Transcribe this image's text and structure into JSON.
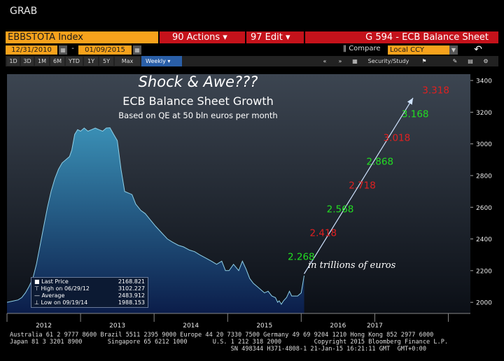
{
  "window_label": "GRAB",
  "header": {
    "ticker": "EBBSTOTA Index",
    "actions_label": "90 Actions ▾",
    "edit_label": "97 Edit   ▾",
    "title": "G 594 - ECB Balance Sheet",
    "start_date": "12/31/2010",
    "end_date": "01/09/2015",
    "date_separator": "-",
    "compare_label": "Compare",
    "currency": "Local CCY"
  },
  "range_buttons": [
    "1D",
    "3D",
    "1M",
    "6M",
    "YTD",
    "1Y",
    "5Y",
    "Max"
  ],
  "frequency": "Weekly ▾",
  "tools": {
    "security_study": "Security/Study"
  },
  "legend": {
    "rows": [
      {
        "label": "Last Price",
        "value": "2168.821"
      },
      {
        "label": "High on 06/29/12",
        "value": "3102.227"
      },
      {
        "label": "Average",
        "value": "2483.912"
      },
      {
        "label": "Low on 09/19/14",
        "value": "1988.153"
      }
    ]
  },
  "footer": {
    "line1": "Australia 61 2 9777 8600 Brazil 5511 2395 9000 Europe 44 20 7330 7500 Germany 49 69 9204 1210 Hong Kong 852 2977 6000",
    "line2": "Japan 81 3 3201 8900       Singapore 65 6212 1000       U.S. 1 212 318 2000         Copyright 2015 Bloomberg Finance L.P.",
    "line3": "                                                             SN 498344 H371-4808-1 21-Jan-15 16:21:11 GMT  GMT+0:00"
  },
  "colors": {
    "orange": "#f7a21c",
    "red_button": "#c4121b",
    "series_fill": "#2f7fa3",
    "projection_up": "#22dd22",
    "projection_down": "#e02020"
  },
  "chart_data": {
    "type": "area",
    "annotation_title": "Shock & Awe???",
    "subtitle": "ECB Balance Sheet Growth",
    "subsubtitle": "Based on QE at 50 bln euros per month",
    "units_note": "in trillions of euros",
    "x_tick_labels": [
      "2012",
      "2013",
      "2014",
      "2015",
      "2016",
      "2017"
    ],
    "y_ticks": [
      2000,
      2200,
      2400,
      2600,
      2800,
      3000,
      3200,
      3400
    ],
    "ylim": [
      1930,
      3440
    ],
    "xlim": [
      2011.0,
      2017.3
    ],
    "series": [
      {
        "x": [
          2011.0,
          2011.05,
          2011.1,
          2011.15,
          2011.2,
          2011.25,
          2011.3,
          2011.35,
          2011.4,
          2011.45,
          2011.5,
          2011.55,
          2011.6,
          2011.65,
          2011.7,
          2011.75,
          2011.8,
          2011.85,
          2011.88,
          2011.92,
          2011.96,
          2012.0,
          2012.05,
          2012.1,
          2012.15,
          2012.2,
          2012.25,
          2012.3,
          2012.35,
          2012.4,
          2012.45,
          2012.5,
          2012.55,
          2012.6,
          2012.7,
          2012.75,
          2012.82,
          2012.88,
          2012.95,
          2013.02,
          2013.1,
          2013.18,
          2013.25,
          2013.33,
          2013.4,
          2013.48,
          2013.55,
          2013.62,
          2013.7,
          2013.78,
          2013.85,
          2013.92,
          2013.97,
          2014.02,
          2014.08,
          2014.15,
          2014.2,
          2014.25,
          2014.3,
          2014.35,
          2014.4,
          2014.45,
          2014.5,
          2014.55,
          2014.6,
          2014.65,
          2014.68,
          2014.7,
          2014.73,
          2014.76,
          2014.8,
          2014.84,
          2014.87,
          2014.9,
          2014.95,
          2015.0,
          2015.04
        ],
        "values": [
          2000,
          2005,
          2010,
          2015,
          2030,
          2060,
          2100,
          2150,
          2240,
          2360,
          2480,
          2600,
          2700,
          2780,
          2840,
          2880,
          2900,
          2920,
          2960,
          3060,
          3090,
          3080,
          3100,
          3080,
          3090,
          3100,
          3090,
          3080,
          3100,
          3102,
          3060,
          3020,
          2840,
          2700,
          2680,
          2620,
          2580,
          2560,
          2520,
          2480,
          2440,
          2400,
          2380,
          2360,
          2350,
          2330,
          2320,
          2300,
          2280,
          2260,
          2240,
          2260,
          2200,
          2200,
          2240,
          2200,
          2260,
          2210,
          2150,
          2120,
          2100,
          2080,
          2060,
          2070,
          2040,
          2030,
          2000,
          2010,
          1988,
          2010,
          2030,
          2070,
          2040,
          2040,
          2040,
          2060,
          2169
        ]
      },
      {
        "type": "line",
        "x": [
          2015.04,
          2016.52
        ],
        "values": [
          2180,
          3290
        ]
      }
    ],
    "data_labels": [
      {
        "text": "2.268",
        "x": 2015.0,
        "y": 2268,
        "color": "green"
      },
      {
        "text": "2.418",
        "x": 2015.3,
        "y": 2418,
        "color": "red"
      },
      {
        "text": "2.568",
        "x": 2015.53,
        "y": 2568,
        "color": "green"
      },
      {
        "text": "2.718",
        "x": 2015.83,
        "y": 2718,
        "color": "red"
      },
      {
        "text": "2.868",
        "x": 2016.07,
        "y": 2868,
        "color": "green"
      },
      {
        "text": "3.018",
        "x": 2016.3,
        "y": 3018,
        "color": "red"
      },
      {
        "text": "3.168",
        "x": 2016.55,
        "y": 3168,
        "color": "green"
      },
      {
        "text": "3.318",
        "x": 2016.83,
        "y": 3318,
        "color": "red"
      }
    ],
    "legend_placement": "bottom-left",
    "grid": false
  }
}
